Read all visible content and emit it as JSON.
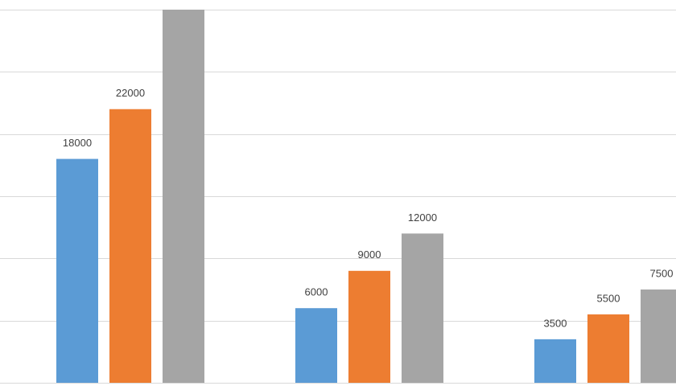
{
  "chart_data": {
    "type": "bar",
    "categories": [
      null,
      null,
      null
    ],
    "series": [
      {
        "color": "#5b9bd5",
        "values": [
          18000,
          6000,
          3500
        ]
      },
      {
        "color": "#ed7d31",
        "values": [
          22000,
          9000,
          5500
        ]
      },
      {
        "color": "#a5a5a5",
        "values": [
          30000,
          12000,
          7500
        ]
      }
    ],
    "ylim": [
      0,
      30000
    ],
    "yticks": [
      0,
      5000,
      10000,
      15000,
      20000,
      25000,
      30000
    ],
    "grid": true,
    "data_labels": true
  }
}
